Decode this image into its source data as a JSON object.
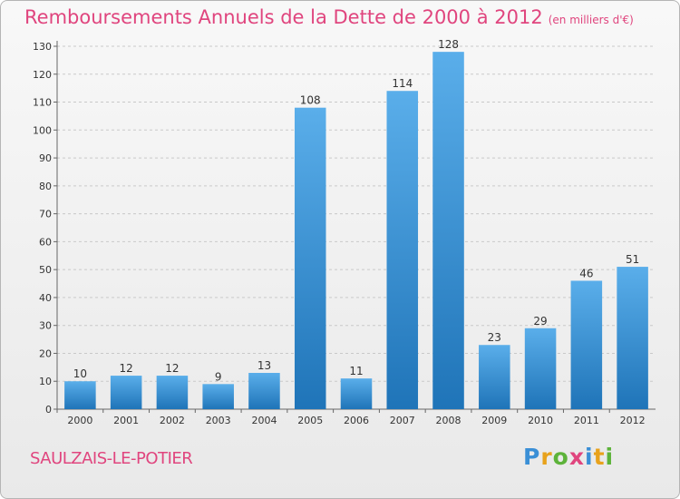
{
  "chart_data": {
    "type": "bar",
    "title": "Remboursements Annuels de la Dette de 2000 à 2012",
    "unit_note": "(en milliers d'€)",
    "categories": [
      "2000",
      "2001",
      "2002",
      "2003",
      "2004",
      "2005",
      "2006",
      "2007",
      "2008",
      "2009",
      "2010",
      "2011",
      "2012"
    ],
    "values": [
      10,
      12,
      12,
      9,
      13,
      108,
      11,
      114,
      128,
      23,
      29,
      46,
      51
    ],
    "ylim": [
      0,
      130
    ],
    "yticks": [
      0,
      10,
      20,
      30,
      40,
      50,
      60,
      70,
      80,
      90,
      100,
      110,
      120,
      130
    ],
    "grid": true,
    "xlabel": "",
    "ylabel": ""
  },
  "commune": "SAULZAIS-LE-POTIER",
  "logo": {
    "text": "Proxiti",
    "letters": [
      {
        "ch": "P",
        "color": "#3a8fd6"
      },
      {
        "ch": "r",
        "color": "#e8a21c"
      },
      {
        "ch": "o",
        "color": "#5db33a"
      },
      {
        "ch": "x",
        "color": "#e0457e"
      },
      {
        "ch": "i",
        "color": "#3a8fd6"
      },
      {
        "ch": "t",
        "color": "#e8a21c"
      },
      {
        "ch": "i",
        "color": "#5db33a"
      }
    ]
  },
  "colors": {
    "title": "#e0457e",
    "bar_light": "#5aaeea",
    "bar_dark": "#1f74b8",
    "grid": "#c9c9c9"
  }
}
